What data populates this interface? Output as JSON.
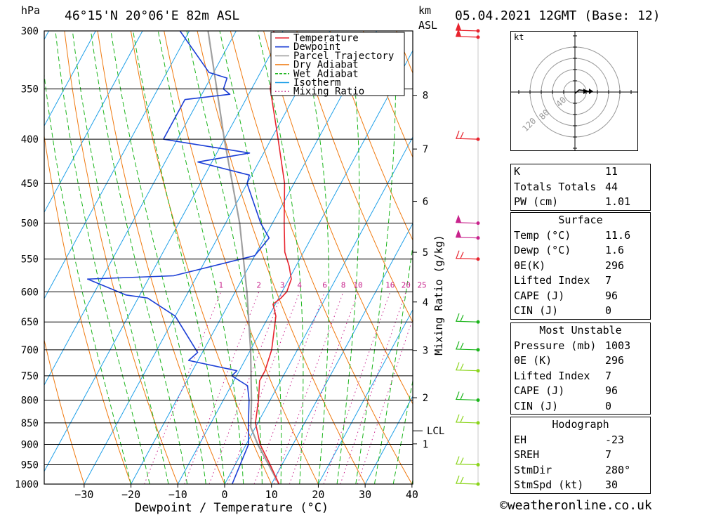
{
  "header": {
    "p_unit": "hPa",
    "location": "46°15'N 20°06'E 82m ASL",
    "alt_unit_km": "km",
    "alt_unit_asl": "ASL",
    "datetime": "05.04.2021 12GMT (Base: 12)"
  },
  "chart_data": {
    "type": "skew-t",
    "xlabel": "Dewpoint / Temperature (°C)",
    "ylabel_left": "hPa",
    "ylabel_right": "Mixing Ratio (g/kg)",
    "x_ticks": [
      -30,
      -20,
      -10,
      0,
      10,
      20,
      30,
      40
    ],
    "pressure_ticks": [
      300,
      350,
      400,
      450,
      500,
      550,
      600,
      650,
      700,
      750,
      800,
      850,
      900,
      950,
      1000
    ],
    "km_ticks": [
      1,
      2,
      3,
      4,
      5,
      6,
      7,
      8
    ],
    "lcl_label": "LCL",
    "mixing_ratio_labels": [
      "1",
      "2",
      "3",
      "4",
      "6",
      "8",
      "10",
      "16",
      "20",
      "25"
    ],
    "legend": [
      "Temperature",
      "Dewpoint",
      "Parcel Trajectory",
      "Dry Adiabat",
      "Wet Adiabat",
      "Isotherm",
      "Mixing Ratio"
    ],
    "colors": {
      "temperature": "#e8242e",
      "dewpoint": "#1c3fd6",
      "parcel": "#a0a0a0",
      "dry_adiabat": "#f07a10",
      "wet_adiabat": "#1cb51c",
      "isotherm": "#1fa0e8",
      "mixing_ratio": "#c8238c"
    },
    "temperature": [
      {
        "p": 1000,
        "t": 11.6
      },
      {
        "p": 950,
        "t": 7.5
      },
      {
        "p": 900,
        "t": 3.0
      },
      {
        "p": 850,
        "t": -0.5
      },
      {
        "p": 800,
        "t": -2.5
      },
      {
        "p": 760,
        "t": -4.5
      },
      {
        "p": 740,
        "t": -4.5
      },
      {
        "p": 700,
        "t": -5.5
      },
      {
        "p": 640,
        "t": -8.5
      },
      {
        "p": 620,
        "t": -10.5
      },
      {
        "p": 610,
        "t": -9.5
      },
      {
        "p": 600,
        "t": -9.0
      },
      {
        "p": 580,
        "t": -9.5
      },
      {
        "p": 560,
        "t": -11.5
      },
      {
        "p": 540,
        "t": -14.0
      },
      {
        "p": 500,
        "t": -17.5
      },
      {
        "p": 450,
        "t": -22.0
      },
      {
        "p": 400,
        "t": -28.5
      },
      {
        "p": 350,
        "t": -36.0
      },
      {
        "p": 330,
        "t": -38.0
      },
      {
        "p": 320,
        "t": -37.5
      },
      {
        "p": 310,
        "t": -40.0
      },
      {
        "p": 300,
        "t": -42.0
      }
    ],
    "dewpoint": [
      {
        "p": 1000,
        "t": 1.6
      },
      {
        "p": 900,
        "t": 0.5
      },
      {
        "p": 850,
        "t": -2.0
      },
      {
        "p": 800,
        "t": -4.5
      },
      {
        "p": 770,
        "t": -6.5
      },
      {
        "p": 750,
        "t": -11.0
      },
      {
        "p": 740,
        "t": -10.5
      },
      {
        "p": 720,
        "t": -22.0
      },
      {
        "p": 705,
        "t": -21.0
      },
      {
        "p": 640,
        "t": -30.0
      },
      {
        "p": 610,
        "t": -38.0
      },
      {
        "p": 605,
        "t": -43.0
      },
      {
        "p": 580,
        "t": -53.0
      },
      {
        "p": 575,
        "t": -35.0
      },
      {
        "p": 545,
        "t": -20.0
      },
      {
        "p": 520,
        "t": -19.0
      },
      {
        "p": 500,
        "t": -22.5
      },
      {
        "p": 450,
        "t": -30.0
      },
      {
        "p": 440,
        "t": -30.5
      },
      {
        "p": 425,
        "t": -43.0
      },
      {
        "p": 415,
        "t": -33.0
      },
      {
        "p": 400,
        "t": -53.0
      },
      {
        "p": 360,
        "t": -53.0
      },
      {
        "p": 355,
        "t": -44.0
      },
      {
        "p": 350,
        "t": -46.0
      },
      {
        "p": 340,
        "t": -46.5
      },
      {
        "p": 335,
        "t": -51.0
      },
      {
        "p": 300,
        "t": -62.0
      }
    ],
    "parcel": [
      {
        "p": 1000,
        "t": 11.6
      },
      {
        "p": 900,
        "t": 2.5
      },
      {
        "p": 860,
        "t": -1.0
      },
      {
        "p": 800,
        "t": -4.0
      },
      {
        "p": 700,
        "t": -10.0
      },
      {
        "p": 600,
        "t": -17.5
      },
      {
        "p": 500,
        "t": -27.0
      },
      {
        "p": 400,
        "t": -40.0
      },
      {
        "p": 300,
        "t": -56.0
      }
    ]
  },
  "hodograph": {
    "unit": "kt",
    "ring_labels": [
      "40",
      "80",
      "120"
    ]
  },
  "indices": {
    "rows": [
      {
        "label": "K",
        "value": "11"
      },
      {
        "label": "Totals Totals",
        "value": "44"
      },
      {
        "label": "PW (cm)",
        "value": "1.01"
      }
    ]
  },
  "surface": {
    "title": "Surface",
    "rows": [
      {
        "label": "Temp (°C)",
        "value": "11.6"
      },
      {
        "label": "Dewp (°C)",
        "value": "1.6"
      },
      {
        "label": "θE(K)",
        "value": "296"
      },
      {
        "label": "Lifted Index",
        "value": "7"
      },
      {
        "label": "CAPE (J)",
        "value": "96"
      },
      {
        "label": "CIN (J)",
        "value": "0"
      }
    ]
  },
  "most_unstable": {
    "title": "Most Unstable",
    "rows": [
      {
        "label": "Pressure (mb)",
        "value": "1003"
      },
      {
        "label": "θE (K)",
        "value": "296"
      },
      {
        "label": "Lifted Index",
        "value": "7"
      },
      {
        "label": "CAPE (J)",
        "value": "96"
      },
      {
        "label": "CIN (J)",
        "value": "0"
      }
    ]
  },
  "hodograph_table": {
    "title": "Hodograph",
    "rows": [
      {
        "label": "EH",
        "value": "-23"
      },
      {
        "label": "SREH",
        "value": "7"
      },
      {
        "label": "StmDir",
        "value": "280°"
      },
      {
        "label": "StmSpd (kt)",
        "value": "30"
      }
    ]
  },
  "footer": {
    "credit": "©weatheronline.co.uk"
  }
}
